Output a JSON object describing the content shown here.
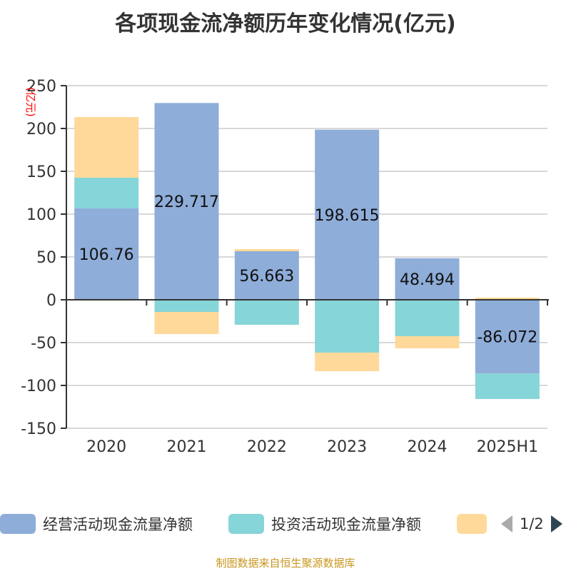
{
  "title": "各项现金流净额历年变化情况(亿元)",
  "source": "制图数据来自恒生聚源数据库",
  "legend": {
    "page": "1/2",
    "prev_icon": "triangle-left-icon",
    "next_icon": "triangle-right-icon"
  },
  "chart_data": {
    "type": "bar",
    "stacked": true,
    "title": "各项现金流净额历年变化情况(亿元)",
    "ylabel": "(亿元)",
    "ylim": [
      -150,
      250
    ],
    "yticks": [
      250,
      200,
      150,
      100,
      50,
      0,
      -50,
      -100,
      -150
    ],
    "grid": true,
    "legend_position": "bottom",
    "categories": [
      "2020",
      "2021",
      "2022",
      "2023",
      "2024",
      "2025H1"
    ],
    "series": [
      {
        "name": "经营活动现金流量净额",
        "color": "#8eadd9",
        "values": [
          106.76,
          229.717,
          56.663,
          198.615,
          48.494,
          -86.072
        ],
        "labels": [
          "106.76",
          "229.717",
          "56.663",
          "198.615",
          "48.494",
          "-86.072"
        ]
      },
      {
        "name": "投资活动现金流量净额",
        "color": "#86d5d8",
        "values": [
          35.8,
          -14.2,
          -29.2,
          -61.7,
          -42.5,
          -29.8
        ]
      },
      {
        "color": "#fed99a",
        "values": [
          70.8,
          -25.8,
          2.5,
          -21.7,
          -14.2,
          2.5
        ]
      }
    ]
  }
}
